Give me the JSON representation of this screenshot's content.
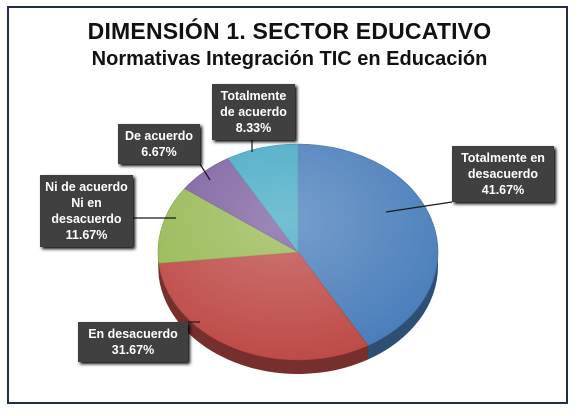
{
  "chart_data": {
    "type": "pie",
    "title": "DIMENSIÓN  1. SECTOR EDUCATIVO",
    "subtitle": "Normativas Integración TIC en Educación",
    "slices": [
      {
        "lines": [
          "Totalmente en",
          "desacuerdo",
          "41.67%"
        ],
        "value": 41.67,
        "color": "#4a7ebb"
      },
      {
        "lines": [
          "En desacuerdo",
          "31.67%"
        ],
        "value": 31.67,
        "color": "#be4b48"
      },
      {
        "lines": [
          "Ni de acuerdo",
          "Ni en",
          "desacuerdo",
          "11.67%"
        ],
        "value": 11.67,
        "color": "#98b954"
      },
      {
        "lines": [
          "De acuerdo",
          "6.67%"
        ],
        "value": 6.67,
        "color": "#7d60a0"
      },
      {
        "lines": [
          "Totalmente",
          "de acuerdo",
          "8.33%"
        ],
        "value": 8.33,
        "color": "#46aac5"
      }
    ]
  }
}
